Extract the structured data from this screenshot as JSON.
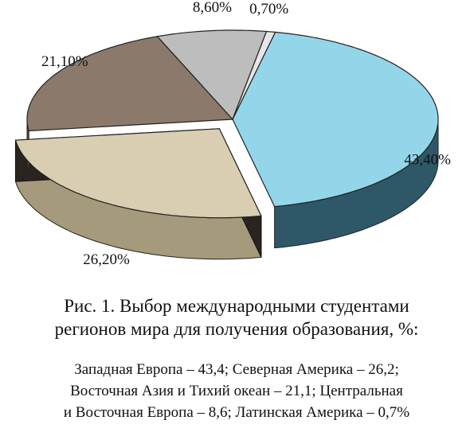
{
  "chart_data": {
    "type": "pie3d",
    "values": [
      43.4,
      26.2,
      21.1,
      8.6,
      0.7
    ],
    "value_labels": [
      "43,40%",
      "26,20%",
      "21,10%",
      "8,60%",
      "0,70%"
    ],
    "colors": [
      "#93d6ea",
      "#d9ceb1",
      "#8b7a6b",
      "#bdbdbd",
      "#e6e6e6"
    ],
    "side_colors": [
      "#2e5868",
      "#a69a7c",
      "#5a4c40",
      "#8a8a8a",
      "#b0b0b0"
    ],
    "exploded": [
      false,
      true,
      false,
      false,
      false
    ],
    "caption_lines": [
      "Рис. 1. Выбор международными студентами",
      "регионов мира для получения образования, %:"
    ],
    "note_lines": [
      "Западная Европа – 43,4; Северная Америка – 26,2;",
      "Восточная Азия и Тихий океан – 21,1; Центральная",
      "и Восточная Европа – 8,6; Латинская Америка – 0,7%"
    ]
  }
}
